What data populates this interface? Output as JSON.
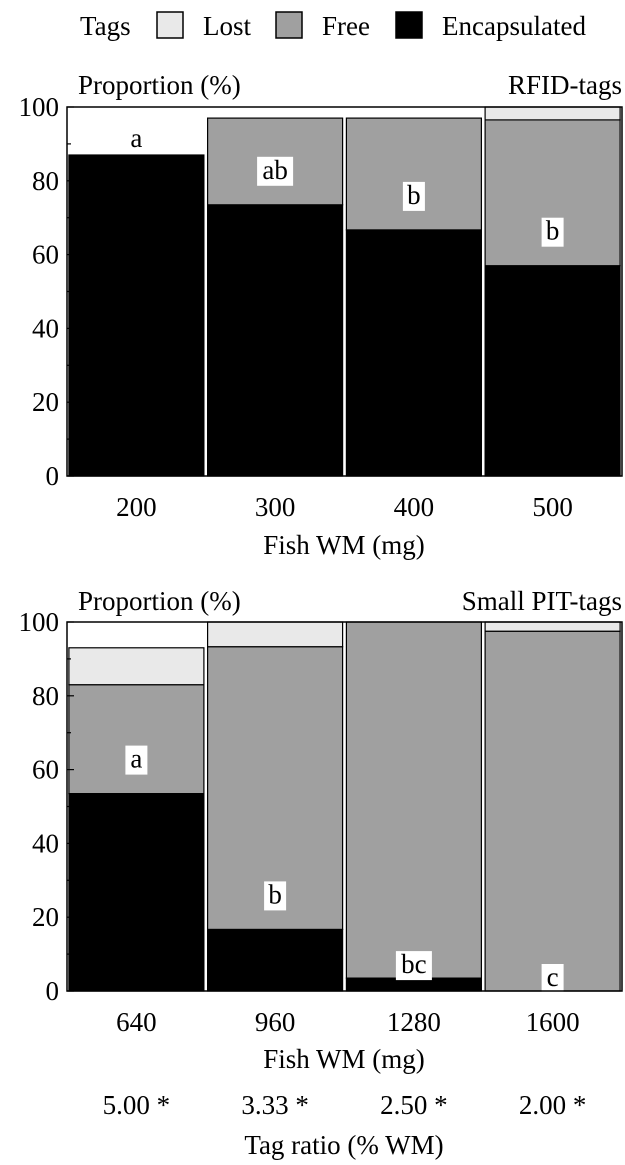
{
  "legend": {
    "title": "Tags",
    "items": [
      {
        "name": "Lost",
        "color": "#e9e9e9"
      },
      {
        "name": "Free",
        "color": "#a0a0a0"
      },
      {
        "name": "Encapsulated",
        "color": "#000000"
      }
    ]
  },
  "chart_data": [
    {
      "type": "bar",
      "stacked": true,
      "title": "RFID-tags",
      "ylabel": "Proportion (%)",
      "xlabel": "Fish WM (mg)",
      "categories": [
        "200",
        "300",
        "400",
        "500"
      ],
      "ylim": [
        0,
        100
      ],
      "yticks": [
        0,
        20,
        40,
        60,
        80,
        100
      ],
      "series": [
        {
          "name": "Encapsulated",
          "values": [
            87,
            73.5,
            66.7,
            57
          ]
        },
        {
          "name": "Free",
          "values": [
            0,
            23.5,
            30.3,
            39.5
          ]
        },
        {
          "name": "Lost",
          "values": [
            0,
            0,
            0,
            3.5
          ]
        }
      ],
      "annotations": [
        "a",
        "ab",
        "b",
        "b"
      ]
    },
    {
      "type": "bar",
      "stacked": true,
      "title": "Small PIT-tags",
      "ylabel": "Proportion (%)",
      "xlabel": "Fish WM (mg)",
      "categories": [
        "640",
        "960",
        "1280",
        "1600"
      ],
      "ylim": [
        0,
        100
      ],
      "yticks": [
        0,
        20,
        40,
        60,
        80,
        100
      ],
      "series": [
        {
          "name": "Encapsulated",
          "values": [
            53.5,
            16.7,
            3.5,
            0
          ]
        },
        {
          "name": "Free",
          "values": [
            29.5,
            76.6,
            96.5,
            97.5
          ]
        },
        {
          "name": "Lost",
          "values": [
            10,
            6.7,
            0,
            2.5
          ]
        }
      ],
      "annotations": [
        "a",
        "b",
        "bc",
        "c"
      ],
      "tag_ratio": {
        "label": "Tag ratio (% WM)",
        "values": [
          "5.00 *",
          "3.33 *",
          "2.50 *",
          "2.00 *"
        ]
      }
    }
  ]
}
